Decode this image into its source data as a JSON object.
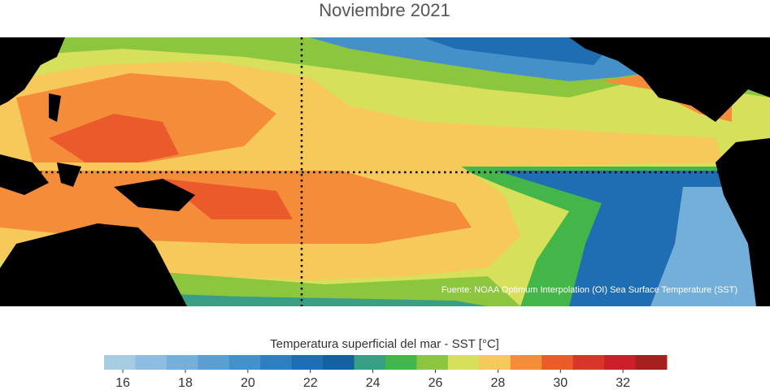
{
  "title": "Noviembre 2021",
  "source": "Fuente: NOAA Optimum Interpolation (OI) Sea Surface Temperature (SST)",
  "colorbar": {
    "label": "Temperatura superficial del mar - SST  [°C]",
    "range": [
      15.4,
      33.4
    ],
    "ticks": [
      16,
      18,
      20,
      22,
      24,
      26,
      28,
      30,
      32
    ],
    "colors": [
      "#a6cbe3",
      "#8dbde0",
      "#74afd9",
      "#5b9fd2",
      "#4590c8",
      "#2f7fbf",
      "#1f6db2",
      "#15609f",
      "#3a9e85",
      "#44b649",
      "#8cc63f",
      "#d7e05a",
      "#f7c95a",
      "#f58c3a",
      "#eb5a2a",
      "#d9362a",
      "#cc1f2a",
      "#a8201e"
    ]
  }
}
